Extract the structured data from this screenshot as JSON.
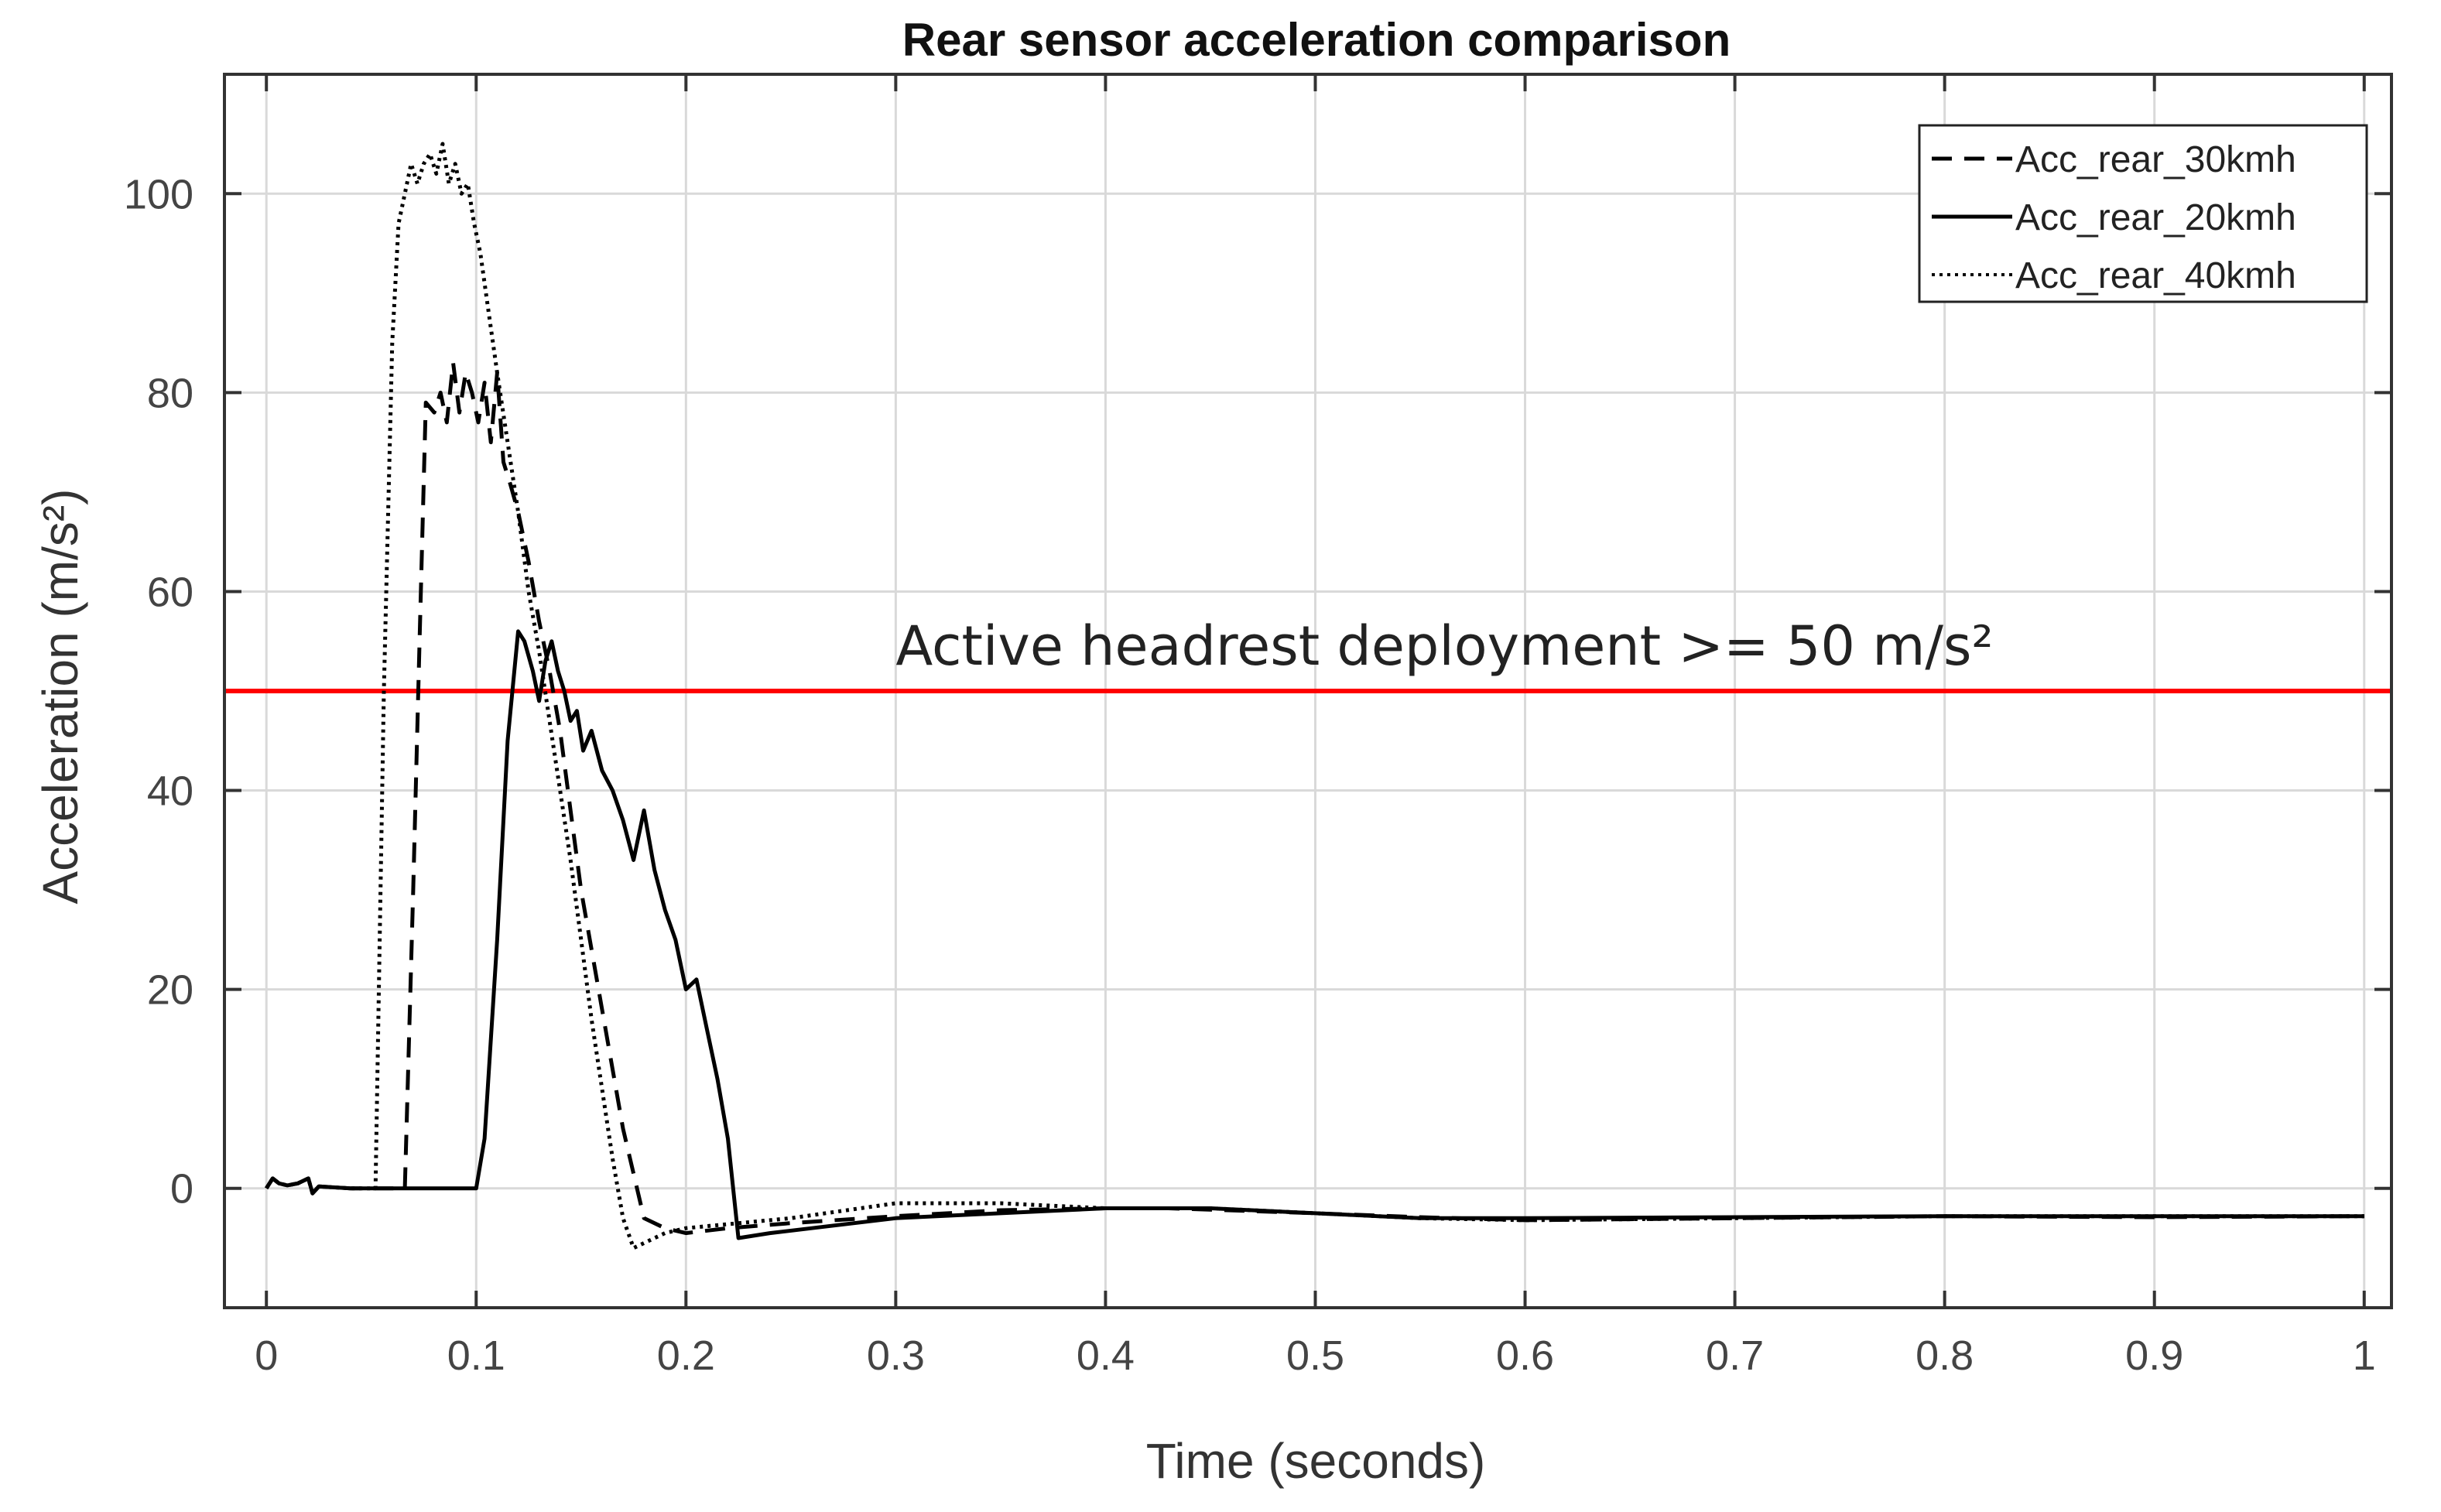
{
  "chart_data": {
    "type": "line",
    "title": "Rear sensor acceleration comparison",
    "xlabel": "Time (seconds)",
    "ylabel": "Acceleration (m/s²)",
    "xlim": [
      -0.02,
      1.013
    ],
    "ylim": [
      -12,
      112
    ],
    "xticks": [
      0,
      0.1,
      0.2,
      0.3,
      0.4,
      0.5,
      0.6,
      0.7,
      0.8,
      0.9,
      1
    ],
    "xtick_labels": [
      "0",
      "0.1",
      "0.2",
      "0.3",
      "0.4",
      "0.5",
      "0.6",
      "0.7",
      "0.8",
      "0.9",
      "1"
    ],
    "yticks": [
      0,
      20,
      40,
      60,
      80,
      100
    ],
    "ytick_labels": [
      "0",
      "20",
      "40",
      "60",
      "80",
      "100"
    ],
    "grid": true,
    "legend_position": "top-right",
    "threshold": {
      "value": 50,
      "color": "#ff0000",
      "label": "Active headrest deployment >= 50 m/s²"
    },
    "series": [
      {
        "name": "Acc_rear_30kmh",
        "style": "dashed",
        "x": [
          0,
          0.003,
          0.006,
          0.01,
          0.015,
          0.02,
          0.022,
          0.025,
          0.04,
          0.06,
          0.066,
          0.07,
          0.073,
          0.076,
          0.08,
          0.083,
          0.086,
          0.089,
          0.092,
          0.095,
          0.098,
          0.101,
          0.104,
          0.107,
          0.11,
          0.113,
          0.116,
          0.12,
          0.125,
          0.13,
          0.135,
          0.14,
          0.145,
          0.15,
          0.16,
          0.17,
          0.18,
          0.19,
          0.2,
          0.22,
          0.25,
          0.3,
          0.35,
          0.4,
          0.43,
          0.5,
          0.55,
          0.6,
          0.65,
          0.7,
          0.8,
          0.9,
          1.0
        ],
        "y": [
          0,
          1,
          0.5,
          0.3,
          0.5,
          1,
          -0.5,
          0.2,
          0,
          0,
          0,
          30,
          55,
          79,
          78,
          80,
          77,
          83,
          78,
          82,
          80,
          77,
          81,
          75,
          82,
          73,
          71,
          68,
          63,
          57,
          52,
          46,
          38,
          30,
          18,
          6,
          -3,
          -4,
          -4.5,
          -4,
          -3.5,
          -2.8,
          -2.2,
          -2,
          -2,
          -2.5,
          -2.9,
          -3.2,
          -3.1,
          -3,
          -2.8,
          -2.9,
          -2.8
        ]
      },
      {
        "name": "Acc_rear_20kmh",
        "style": "solid",
        "x": [
          0,
          0.003,
          0.006,
          0.01,
          0.015,
          0.02,
          0.022,
          0.025,
          0.04,
          0.07,
          0.1,
          0.104,
          0.11,
          0.115,
          0.12,
          0.123,
          0.127,
          0.13,
          0.133,
          0.136,
          0.139,
          0.142,
          0.145,
          0.148,
          0.151,
          0.155,
          0.16,
          0.165,
          0.17,
          0.175,
          0.18,
          0.185,
          0.19,
          0.195,
          0.2,
          0.205,
          0.21,
          0.215,
          0.22,
          0.225,
          0.24,
          0.26,
          0.3,
          0.35,
          0.4,
          0.45,
          0.5,
          0.55,
          0.6,
          0.7,
          0.8,
          0.9,
          1.0
        ],
        "y": [
          0,
          1,
          0.5,
          0.3,
          0.5,
          1,
          -0.5,
          0.2,
          0,
          0,
          0,
          5,
          25,
          45,
          56,
          55,
          52,
          49,
          53,
          55,
          52,
          50,
          47,
          48,
          44,
          46,
          42,
          40,
          37,
          33,
          38,
          32,
          28,
          25,
          20,
          21,
          16,
          11,
          5,
          -5,
          -4.5,
          -4,
          -3,
          -2.5,
          -2,
          -2,
          -2.5,
          -3,
          -3,
          -2.9,
          -2.8,
          -2.8,
          -2.8
        ]
      },
      {
        "name": "Acc_rear_40kmh",
        "style": "dotted",
        "x": [
          0,
          0.003,
          0.006,
          0.01,
          0.015,
          0.02,
          0.022,
          0.025,
          0.04,
          0.052,
          0.056,
          0.06,
          0.063,
          0.066,
          0.069,
          0.072,
          0.075,
          0.078,
          0.081,
          0.084,
          0.087,
          0.09,
          0.093,
          0.096,
          0.099,
          0.102,
          0.106,
          0.11,
          0.115,
          0.12,
          0.125,
          0.13,
          0.135,
          0.14,
          0.145,
          0.15,
          0.155,
          0.16,
          0.165,
          0.17,
          0.175,
          0.18,
          0.19,
          0.2,
          0.25,
          0.3,
          0.35,
          0.4,
          0.45,
          0.5,
          0.55,
          0.6,
          0.65,
          0.7,
          0.8,
          0.9,
          1.0
        ],
        "y": [
          0,
          1,
          0.5,
          0.3,
          0.5,
          1,
          -0.5,
          0.2,
          0,
          0,
          50,
          85,
          97,
          100,
          103,
          101,
          103,
          104,
          102,
          105,
          101,
          103,
          100,
          101,
          97,
          94,
          88,
          82,
          75,
          68,
          60,
          54,
          47,
          40,
          33,
          25,
          17,
          10,
          3,
          -3,
          -6,
          -5.5,
          -4.5,
          -4,
          -3,
          -1.5,
          -1.5,
          -2,
          -2,
          -2.5,
          -3,
          -3.2,
          -3.1,
          -3,
          -2.8,
          -2.8,
          -2.8
        ]
      }
    ]
  }
}
